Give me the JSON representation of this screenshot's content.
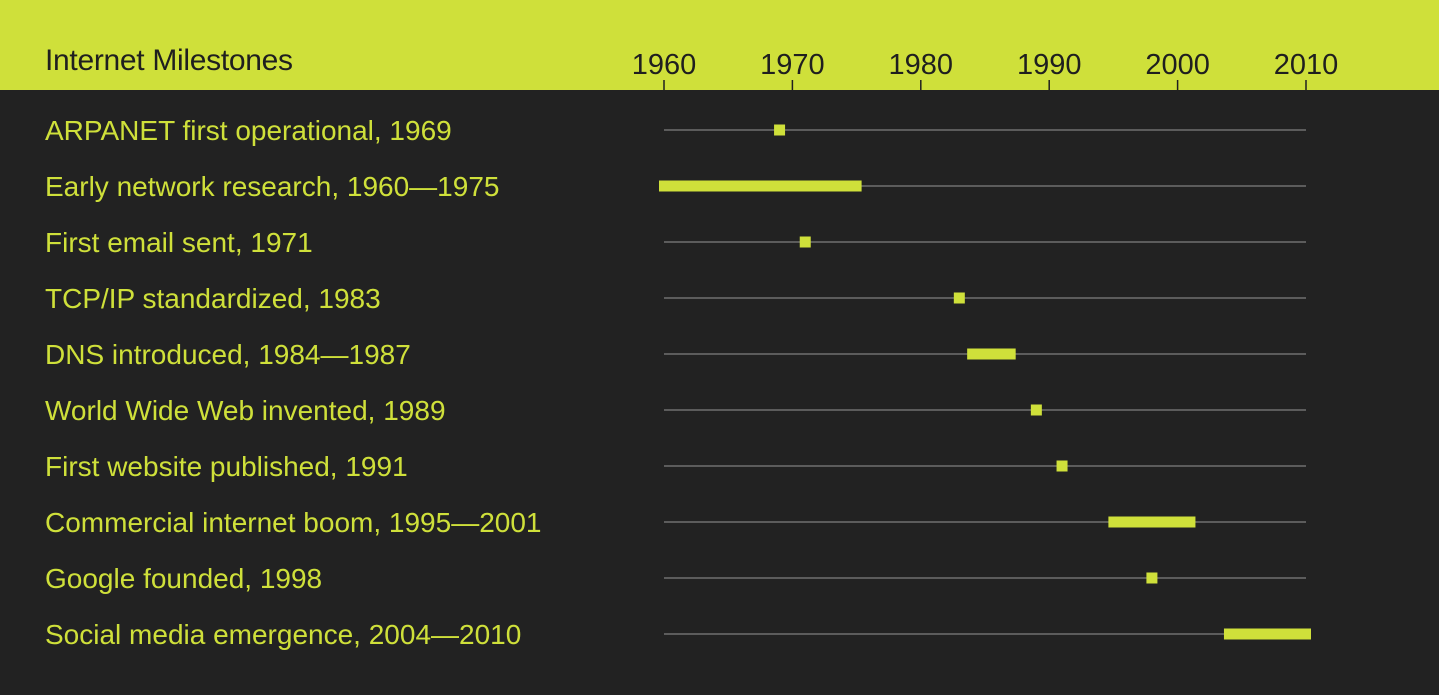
{
  "chart_data": {
    "type": "timeline",
    "title": "Internet Milestones",
    "x_axis": {
      "range": [
        1960,
        2010
      ],
      "ticks": [
        1960,
        1970,
        1980,
        1990,
        2000,
        2010
      ],
      "position": "top"
    },
    "grid": false,
    "colors": {
      "accent": "#cfe03a",
      "background": "#222222",
      "track": "#6f6f6f",
      "header_text": "#1f1f1f"
    },
    "events": [
      {
        "label": "ARPANET first operational, 1969",
        "start": 1969,
        "end": 1969
      },
      {
        "label": "Early network research, 1960—1975",
        "start": 1960,
        "end": 1975
      },
      {
        "label": "First email sent, 1971",
        "start": 1971,
        "end": 1971
      },
      {
        "label": "TCP/IP standardized, 1983",
        "start": 1983,
        "end": 1983
      },
      {
        "label": "DNS introduced, 1984—1987",
        "start": 1984,
        "end": 1987
      },
      {
        "label": "World Wide Web invented, 1989",
        "start": 1989,
        "end": 1989
      },
      {
        "label": "First website published, 1991",
        "start": 1991,
        "end": 1991
      },
      {
        "label": "Commercial internet boom, 1995—2001",
        "start": 1995,
        "end": 2001
      },
      {
        "label": "Google founded, 1998",
        "start": 1998,
        "end": 1998
      },
      {
        "label": "Social media emergence, 2004—2010",
        "start": 2004,
        "end": 2010
      }
    ]
  }
}
